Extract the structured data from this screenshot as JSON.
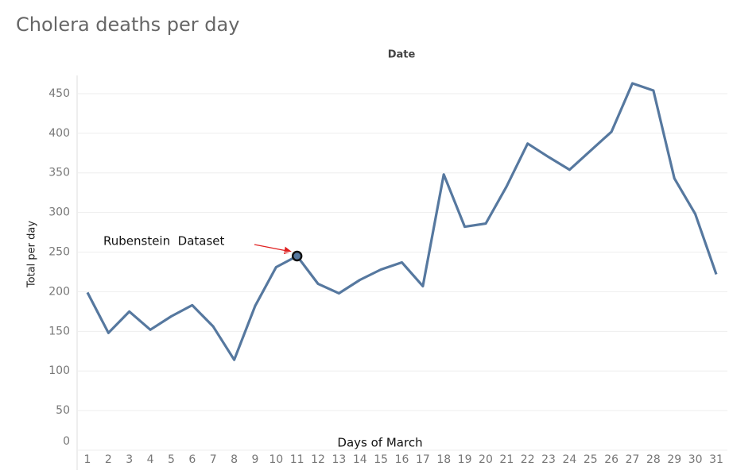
{
  "chart_data": {
    "type": "line",
    "title": "Cholera deaths per day",
    "subtitle": "Date",
    "x_label": "Days of March",
    "y_label": "Total per day",
    "categories": [
      "1",
      "2",
      "3",
      "4",
      "5",
      "6",
      "7",
      "8",
      "9",
      "10",
      "11",
      "12",
      "13",
      "14",
      "15",
      "16",
      "17",
      "18",
      "19",
      "20",
      "21",
      "22",
      "23",
      "24",
      "25",
      "26",
      "27",
      "28",
      "29",
      "30",
      "31"
    ],
    "values": [
      199,
      148,
      175,
      152,
      169,
      183,
      156,
      114,
      182,
      231,
      245,
      210,
      198,
      215,
      228,
      237,
      207,
      348,
      282,
      286,
      333,
      387,
      370,
      354,
      378,
      402,
      463,
      454,
      343,
      298,
      222
    ],
    "color": "#56789f",
    "ylim": [
      0,
      470
    ],
    "yticks": [
      0,
      50,
      100,
      150,
      200,
      250,
      300,
      350,
      400,
      450
    ],
    "grid": true,
    "annotations": [
      {
        "text": "Rubenstein  Dataset",
        "point": 10
      }
    ]
  }
}
